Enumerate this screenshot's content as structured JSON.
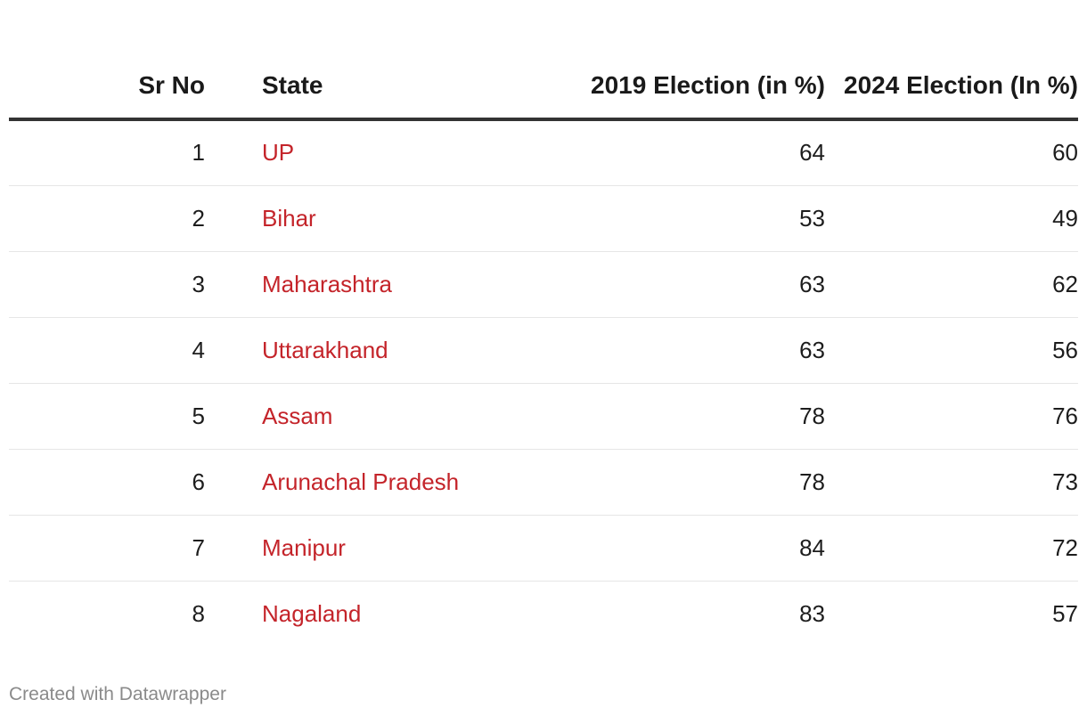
{
  "chart_data": {
    "type": "table",
    "columns": [
      "Sr No",
      "State",
      "2019 Election (in %)",
      "2024 Election (In %)"
    ],
    "rows": [
      {
        "sr": "1",
        "state": "UP",
        "y2019": "64",
        "y2024": "60"
      },
      {
        "sr": "2",
        "state": "Bihar",
        "y2019": "53",
        "y2024": "49"
      },
      {
        "sr": "3",
        "state": "Maharashtra",
        "y2019": "63",
        "y2024": "62"
      },
      {
        "sr": "4",
        "state": "Uttarakhand",
        "y2019": "63",
        "y2024": "56"
      },
      {
        "sr": "5",
        "state": "Assam",
        "y2019": "78",
        "y2024": "76"
      },
      {
        "sr": "6",
        "state": "Arunachal Pradesh",
        "y2019": "78",
        "y2024": "73"
      },
      {
        "sr": "7",
        "state": "Manipur",
        "y2019": "84",
        "y2024": "72"
      },
      {
        "sr": "8",
        "state": "Nagaland",
        "y2019": "83",
        "y2024": "57"
      }
    ]
  },
  "colors": {
    "state_text": "#c4242a",
    "header_rule": "#333333",
    "row_rule": "#e6e6e6",
    "footer_text": "#8a8a8a"
  },
  "footer": {
    "credit": "Created with Datawrapper"
  }
}
